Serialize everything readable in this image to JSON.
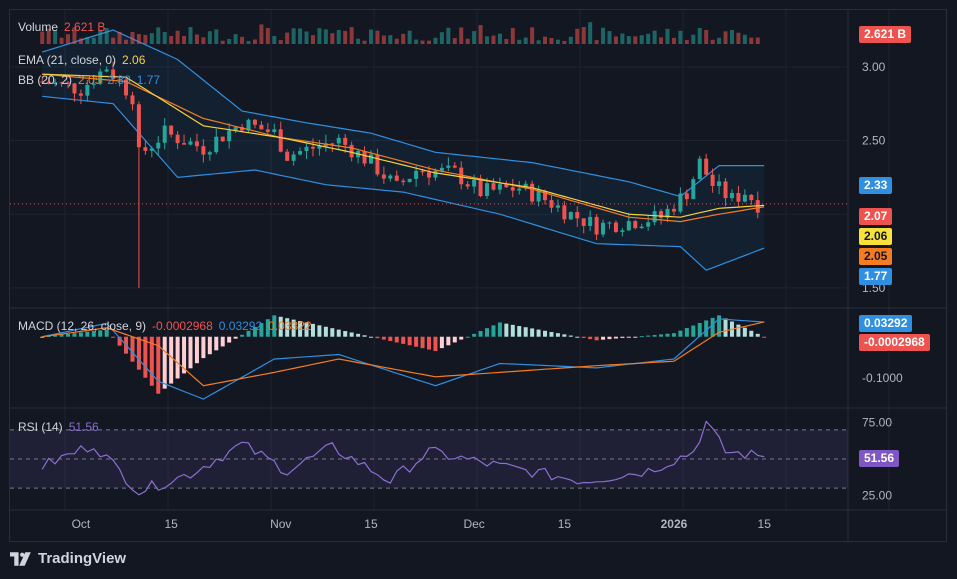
{
  "colors": {
    "background": "#131722",
    "up": "#26a69a",
    "down": "#ef5350",
    "ema": "#f7d23a",
    "bb_basis": "#f57c20",
    "bb_band": "#2f8fe0",
    "macd_line": "#2f8fe0",
    "signal_line": "#f57c20",
    "rsi_line": "#8c6fd0",
    "grid": "#1f2330"
  },
  "legends": {
    "volume": {
      "name": "Volume",
      "value": "2.621 B"
    },
    "ema": {
      "name": "EMA (21, close, 0)",
      "value": "2.06"
    },
    "bb": {
      "name": "BB (20, 2)",
      "basis": "2.05",
      "upper": "2.33",
      "lower": "1.77"
    },
    "macd": {
      "name": "MACD (12, 26, close, 9)",
      "hist": "-0.0002968",
      "macd": "0.03292",
      "signal": "0.03322"
    },
    "rsi": {
      "name": "RSI (14)",
      "value": "51.56"
    }
  },
  "price_axis": {
    "ticks": [
      "3.00",
      "2.50",
      "1.50"
    ],
    "badges": {
      "volume": "2.621 B",
      "bb_upper": "2.33",
      "last_price": "2.07",
      "ema": "2.06",
      "bb_basis": "2.05",
      "bb_lower": "1.77"
    }
  },
  "macd_axis": {
    "ticks": [
      "-0.1000"
    ],
    "badges": {
      "macd": "0.03292",
      "hist": "-0.0002968"
    }
  },
  "rsi_axis": {
    "ticks": [
      "75.00",
      "25.00"
    ],
    "badge": "51.56"
  },
  "time_axis": {
    "labels": [
      "Oct",
      "15",
      "Nov",
      "15",
      "Dec",
      "15",
      "2026",
      "15"
    ]
  },
  "footer": {
    "brand": "TradingView"
  },
  "chart_data": {
    "type": "candlestick",
    "xlabel": "",
    "ylabel": "",
    "x_range": [
      "2025-09-25",
      "2026-01-15"
    ],
    "price_range": [
      1.5,
      3.1
    ],
    "last_price": 2.07,
    "grid": true,
    "price_keypoints": [
      {
        "date": "2025-09-25",
        "close": 2.9
      },
      {
        "date": "2025-10-01",
        "close": 2.85
      },
      {
        "date": "2025-10-05",
        "close": 3.0
      },
      {
        "date": "2025-10-09",
        "close": 2.8
      },
      {
        "date": "2025-10-10",
        "close": 2.4,
        "low": 1.5
      },
      {
        "date": "2025-10-14",
        "close": 2.55
      },
      {
        "date": "2025-10-20",
        "close": 2.45
      },
      {
        "date": "2025-10-26",
        "close": 2.62
      },
      {
        "date": "2025-10-31",
        "close": 2.55
      },
      {
        "date": "2025-11-02",
        "close": 2.4
      },
      {
        "date": "2025-11-06",
        "close": 2.45
      },
      {
        "date": "2025-11-10",
        "close": 2.5
      },
      {
        "date": "2025-11-15",
        "close": 2.35
      },
      {
        "date": "2025-11-19",
        "close": 2.18
      },
      {
        "date": "2025-11-22",
        "close": 2.3
      },
      {
        "date": "2025-11-28",
        "close": 2.28
      },
      {
        "date": "2025-12-02",
        "close": 2.15
      },
      {
        "date": "2025-12-08",
        "close": 2.18
      },
      {
        "date": "2025-12-12",
        "close": 2.1
      },
      {
        "date": "2025-12-16",
        "close": 2.0
      },
      {
        "date": "2025-12-20",
        "close": 1.92
      },
      {
        "date": "2025-12-25",
        "close": 1.95
      },
      {
        "date": "2025-12-30",
        "close": 1.98
      },
      {
        "date": "2026-01-03",
        "close": 2.15
      },
      {
        "date": "2026-01-05",
        "close": 2.35
      },
      {
        "date": "2026-01-07",
        "close": 2.2
      },
      {
        "date": "2026-01-10",
        "close": 2.1
      },
      {
        "date": "2026-01-12",
        "close": 2.15
      },
      {
        "date": "2026-01-14",
        "close": 2.07
      }
    ],
    "ema_21_keypoints": [
      {
        "date": "2025-09-25",
        "value": 2.95
      },
      {
        "date": "2025-10-08",
        "value": 2.93
      },
      {
        "date": "2025-10-20",
        "value": 2.6
      },
      {
        "date": "2025-11-01",
        "value": 2.52
      },
      {
        "date": "2025-11-12",
        "value": 2.42
      },
      {
        "date": "2025-11-25",
        "value": 2.28
      },
      {
        "date": "2025-12-10",
        "value": 2.18
      },
      {
        "date": "2025-12-25",
        "value": 2.0
      },
      {
        "date": "2026-01-02",
        "value": 1.98
      },
      {
        "date": "2026-01-08",
        "value": 2.04
      },
      {
        "date": "2026-01-15",
        "value": 2.06
      }
    ],
    "bb_upper_keypoints": [
      {
        "date": "2025-09-25",
        "value": 3.1
      },
      {
        "date": "2025-10-06",
        "value": 3.25
      },
      {
        "date": "2025-10-16",
        "value": 3.05
      },
      {
        "date": "2025-10-26",
        "value": 2.7
      },
      {
        "date": "2025-11-05",
        "value": 2.62
      },
      {
        "date": "2025-11-15",
        "value": 2.55
      },
      {
        "date": "2025-11-25",
        "value": 2.42
      },
      {
        "date": "2025-12-10",
        "value": 2.35
      },
      {
        "date": "2025-12-25",
        "value": 2.22
      },
      {
        "date": "2026-01-02",
        "value": 2.12
      },
      {
        "date": "2026-01-08",
        "value": 2.33
      },
      {
        "date": "2026-01-15",
        "value": 2.33
      }
    ],
    "bb_basis_keypoints": [
      {
        "date": "2025-09-25",
        "value": 2.95
      },
      {
        "date": "2025-10-08",
        "value": 2.9
      },
      {
        "date": "2025-10-20",
        "value": 2.65
      },
      {
        "date": "2025-11-01",
        "value": 2.52
      },
      {
        "date": "2025-11-12",
        "value": 2.45
      },
      {
        "date": "2025-11-25",
        "value": 2.3
      },
      {
        "date": "2025-12-10",
        "value": 2.17
      },
      {
        "date": "2025-12-25",
        "value": 1.98
      },
      {
        "date": "2026-01-02",
        "value": 1.95
      },
      {
        "date": "2026-01-08",
        "value": 2.0
      },
      {
        "date": "2026-01-15",
        "value": 2.05
      }
    ],
    "bb_lower_keypoints": [
      {
        "date": "2025-09-25",
        "value": 2.8
      },
      {
        "date": "2025-10-06",
        "value": 2.75
      },
      {
        "date": "2025-10-16",
        "value": 2.25
      },
      {
        "date": "2025-10-28",
        "value": 2.3
      },
      {
        "date": "2025-11-08",
        "value": 2.2
      },
      {
        "date": "2025-11-20",
        "value": 2.15
      },
      {
        "date": "2025-12-05",
        "value": 2.0
      },
      {
        "date": "2025-12-20",
        "value": 1.8
      },
      {
        "date": "2026-01-02",
        "value": 1.78
      },
      {
        "date": "2026-01-06",
        "value": 1.62
      },
      {
        "date": "2026-01-15",
        "value": 1.77
      }
    ],
    "macd_keypoints": [
      {
        "date": "2025-09-25",
        "macd": 0.0,
        "signal": 0.0
      },
      {
        "date": "2025-10-05",
        "macd": 0.03,
        "signal": 0.02
      },
      {
        "date": "2025-10-13",
        "macd": -0.1,
        "signal": -0.02
      },
      {
        "date": "2025-10-20",
        "macd": -0.14,
        "signal": -0.11
      },
      {
        "date": "2025-10-31",
        "macd": -0.05,
        "signal": -0.08
      },
      {
        "date": "2025-11-10",
        "macd": -0.04,
        "signal": -0.05
      },
      {
        "date": "2025-11-25",
        "macd": -0.11,
        "signal": -0.09
      },
      {
        "date": "2025-12-05",
        "macd": -0.06,
        "signal": -0.08
      },
      {
        "date": "2025-12-20",
        "macd": -0.07,
        "signal": -0.065
      },
      {
        "date": "2026-01-01",
        "macd": -0.05,
        "signal": -0.055
      },
      {
        "date": "2026-01-08",
        "macd": 0.04,
        "signal": 0.01
      },
      {
        "date": "2026-01-15",
        "macd": 0.03292,
        "signal": 0.03322
      }
    ],
    "macd_last": {
      "macd": 0.03292,
      "signal": 0.03322,
      "hist": -0.0002968
    },
    "rsi_keypoints": [
      {
        "date": "2025-09-25",
        "value": 45
      },
      {
        "date": "2025-10-03",
        "value": 60
      },
      {
        "date": "2025-10-10",
        "value": 28
      },
      {
        "date": "2025-10-18",
        "value": 40
      },
      {
        "date": "2025-10-26",
        "value": 60
      },
      {
        "date": "2025-11-02",
        "value": 42
      },
      {
        "date": "2025-11-09",
        "value": 58
      },
      {
        "date": "2025-11-18",
        "value": 35
      },
      {
        "date": "2025-11-24",
        "value": 55
      },
      {
        "date": "2025-12-05",
        "value": 45
      },
      {
        "date": "2025-12-18",
        "value": 35
      },
      {
        "date": "2025-12-28",
        "value": 42
      },
      {
        "date": "2026-01-04",
        "value": 55
      },
      {
        "date": "2026-01-06",
        "value": 75
      },
      {
        "date": "2026-01-09",
        "value": 55
      },
      {
        "date": "2026-01-15",
        "value": 51.56
      }
    ],
    "rsi_levels": [
      70,
      50,
      30
    ],
    "volume_last": "2.621 B"
  }
}
